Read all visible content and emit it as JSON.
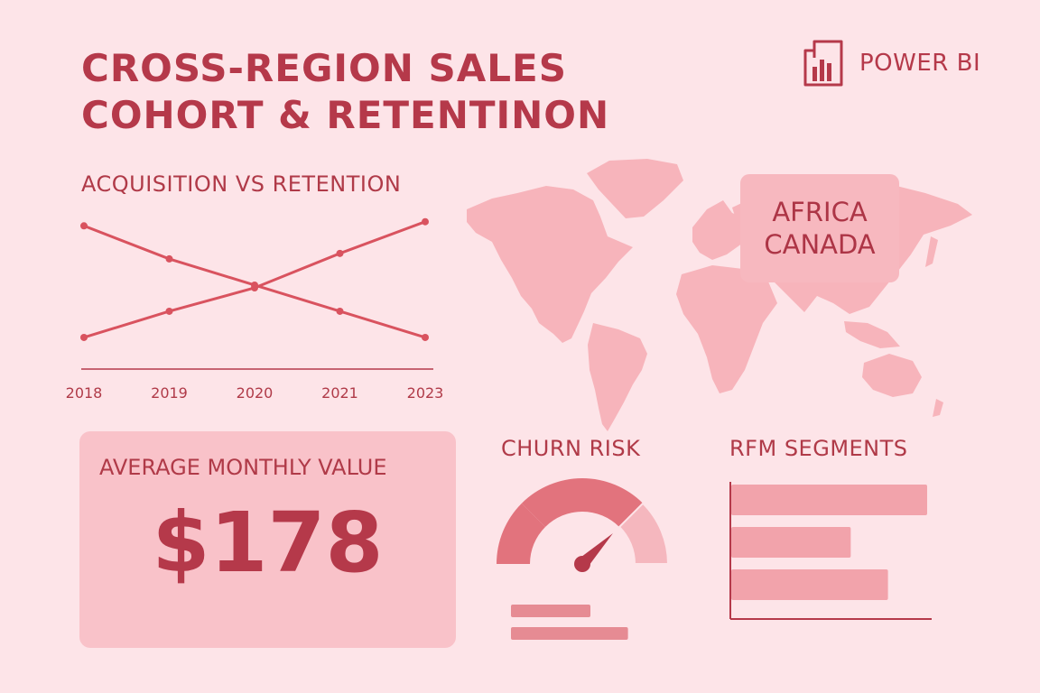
{
  "header": {
    "title_line1": "CROSS-REGION SALES",
    "title_line2": "COHORT & RETENTINON",
    "brand": "POWER BI",
    "brand_icon": "power-bi-logo-icon"
  },
  "colors": {
    "background": "#fde4e8",
    "accent": "#b5394a",
    "line": "#d9535f",
    "card": "#f9c2c9",
    "map": "#f7b4bb",
    "bar": "#f2a3ab"
  },
  "map": {
    "callout_line1": "AFRICA",
    "callout_line2": "CANADA"
  },
  "kpi": {
    "label": "AVERAGE MONTHLY VALUE",
    "value": "$178"
  },
  "chart_data": [
    {
      "type": "line",
      "title": "ACQUISITION VS RETENTION",
      "categories": [
        "2018",
        "2019",
        "2020",
        "2021",
        "2023"
      ],
      "series": [
        {
          "values": [
            100,
            76,
            57,
            38,
            19
          ]
        },
        {
          "values": [
            19,
            38,
            55,
            80,
            103
          ]
        }
      ],
      "ylim": [
        0,
        110
      ],
      "grid": false
    },
    {
      "type": "gauge",
      "title": "CHURN RISK",
      "value": 0.75,
      "bands": [
        0.25,
        0.75,
        1.0
      ],
      "legend_bars": [
        0.55,
        0.81
      ]
    },
    {
      "type": "bar",
      "title": "RFM SEGMENTS",
      "orientation": "horizontal",
      "values": [
        100,
        61,
        80
      ]
    }
  ]
}
